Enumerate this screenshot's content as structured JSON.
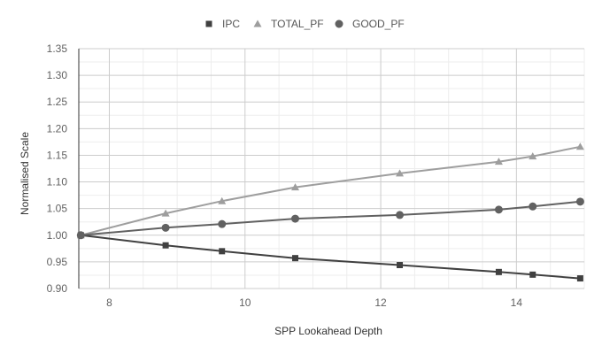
{
  "chart_data": {
    "type": "line",
    "title": "",
    "xlabel": "SPP Lookahead Depth",
    "ylabel": "Normalised Scale",
    "xlim": [
      7.55,
      15.0
    ],
    "ylim": [
      0.9,
      1.35
    ],
    "x_ticks": [
      8,
      10,
      12,
      14
    ],
    "y_ticks": [
      0.9,
      0.95,
      1.0,
      1.05,
      1.1,
      1.15,
      1.2,
      1.25,
      1.3,
      1.35
    ],
    "x_tick_labels": [
      "8",
      "10",
      "12",
      "14"
    ],
    "y_tick_labels": [
      "0.90",
      "0.95",
      "1.00",
      "1.05",
      "1.10",
      "1.15",
      "1.20",
      "1.25",
      "1.30",
      "1.35"
    ],
    "grid": true,
    "legend_position": "top-center",
    "series": [
      {
        "name": "IPC",
        "marker": "square",
        "color": "#404040",
        "points": [
          [
            7.58,
            1.0
          ],
          [
            8.83,
            0.981
          ],
          [
            9.66,
            0.97
          ],
          [
            10.74,
            0.957
          ],
          [
            12.28,
            0.944
          ],
          [
            13.74,
            0.931
          ],
          [
            14.24,
            0.926
          ],
          [
            14.94,
            0.919
          ]
        ]
      },
      {
        "name": "TOTAL_PF",
        "marker": "triangle",
        "color": "#9e9e9e",
        "points": [
          [
            7.58,
            1.0
          ],
          [
            8.83,
            1.041
          ],
          [
            9.66,
            1.064
          ],
          [
            10.74,
            1.09
          ],
          [
            12.28,
            1.116
          ],
          [
            13.74,
            1.138
          ],
          [
            14.24,
            1.148
          ],
          [
            14.94,
            1.166
          ]
        ]
      },
      {
        "name": "GOOD_PF",
        "marker": "circle",
        "color": "#616161",
        "points": [
          [
            7.58,
            1.0
          ],
          [
            8.83,
            1.014
          ],
          [
            9.66,
            1.021
          ],
          [
            10.74,
            1.031
          ],
          [
            12.28,
            1.038
          ],
          [
            13.74,
            1.048
          ],
          [
            14.24,
            1.054
          ],
          [
            14.94,
            1.063
          ]
        ]
      }
    ]
  }
}
